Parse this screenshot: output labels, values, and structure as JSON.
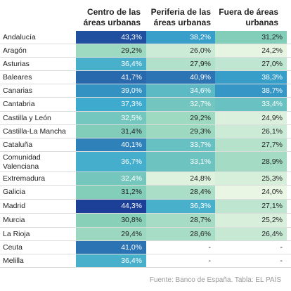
{
  "chart_data": {
    "type": "table",
    "columns": [
      "Centro de las áreas urbanas",
      "Periferia de las áreas urbanas",
      "Fuera de áreas urbanas"
    ],
    "column_lines": [
      [
        "Centro de las",
        "áreas urbanas"
      ],
      [
        "Periferia de las",
        "áreas urbanas"
      ],
      [
        "Fuera de áreas",
        "urbanas"
      ]
    ],
    "rows": [
      {
        "region": [
          "Andalucía"
        ],
        "values": [
          "43,3%",
          "38,2%",
          "31,2%"
        ]
      },
      {
        "region": [
          "Aragón"
        ],
        "values": [
          "29,2%",
          "26,0%",
          "24,2%"
        ]
      },
      {
        "region": [
          "Asturias"
        ],
        "values": [
          "36,4%",
          "27,9%",
          "27,0%"
        ]
      },
      {
        "region": [
          "Baleares"
        ],
        "values": [
          "41,7%",
          "40,9%",
          "38,3%"
        ]
      },
      {
        "region": [
          "Canarias"
        ],
        "values": [
          "39,0%",
          "34,6%",
          "38,7%"
        ]
      },
      {
        "region": [
          "Cantabria"
        ],
        "values": [
          "37,3%",
          "32,7%",
          "33,4%"
        ]
      },
      {
        "region": [
          "Castilla y León"
        ],
        "values": [
          "32,5%",
          "29,2%",
          "24,9%"
        ]
      },
      {
        "region": [
          "Castilla-La Mancha"
        ],
        "values": [
          "31,4%",
          "29,3%",
          "26,1%"
        ]
      },
      {
        "region": [
          "Cataluña"
        ],
        "values": [
          "40,1%",
          "33,7%",
          "27,7%"
        ]
      },
      {
        "region": [
          "Comunidad",
          "Valenciana"
        ],
        "values": [
          "36,7%",
          "33,1%",
          "28,9%"
        ]
      },
      {
        "region": [
          "Extremadura"
        ],
        "values": [
          "32,4%",
          "24,8%",
          "25,3%"
        ]
      },
      {
        "region": [
          "Galicia"
        ],
        "values": [
          "31,2%",
          "28,4%",
          "24,0%"
        ]
      },
      {
        "region": [
          "Madrid"
        ],
        "values": [
          "44,3%",
          "36,3%",
          "27,1%"
        ]
      },
      {
        "region": [
          "Murcia"
        ],
        "values": [
          "30,8%",
          "28,7%",
          "25,2%"
        ]
      },
      {
        "region": [
          "La Rioja"
        ],
        "values": [
          "29,4%",
          "28,6%",
          "26,4%"
        ]
      },
      {
        "region": [
          "Ceuta"
        ],
        "values": [
          "41,0%",
          "-",
          "-"
        ]
      },
      {
        "region": [
          "Melilla"
        ],
        "values": [
          "36,4%",
          "-",
          "-"
        ]
      }
    ],
    "color_scale": {
      "domain": [
        24,
        44.3
      ],
      "stops": [
        "#e9f6e3",
        "#88d1b8",
        "#3ba9cf",
        "#1c3f98"
      ],
      "empty": "#ffffff"
    }
  },
  "source": "Fuente: Banco de España. Tabla: EL PAÍS"
}
